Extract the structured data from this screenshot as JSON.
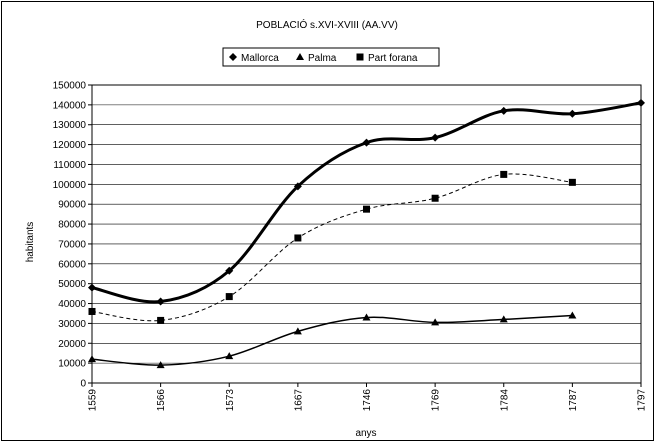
{
  "chart_data": {
    "type": "line",
    "title": "POBLACIÓ  s.XVI-XVIII (AA.VV)",
    "xlabel": "anys",
    "ylabel": "habitants",
    "categories": [
      "1559",
      "1566",
      "1573",
      "1667",
      "1746",
      "1769",
      "1784",
      "1787",
      "1797"
    ],
    "ylim": [
      0,
      150000
    ],
    "yticks": [
      0,
      10000,
      20000,
      30000,
      40000,
      50000,
      60000,
      70000,
      80000,
      90000,
      100000,
      110000,
      120000,
      130000,
      140000,
      150000
    ],
    "grid": "horizontal",
    "legend_position": "top",
    "series": [
      {
        "name": "Mallorca",
        "marker": "diamond",
        "line": "solid-thick",
        "color": "#000000",
        "values": [
          48000,
          41000,
          56500,
          99000,
          121000,
          123500,
          137000,
          135500,
          141000
        ]
      },
      {
        "name": "Palma",
        "marker": "triangle",
        "line": "solid",
        "color": "#000000",
        "values": [
          12000,
          9000,
          13500,
          26000,
          33000,
          30500,
          32000,
          34000,
          null
        ]
      },
      {
        "name": "Part forana",
        "marker": "square",
        "line": "dashed",
        "color": "#000000",
        "values": [
          36000,
          31500,
          43500,
          73000,
          87500,
          93000,
          105000,
          101000,
          null
        ]
      }
    ]
  }
}
